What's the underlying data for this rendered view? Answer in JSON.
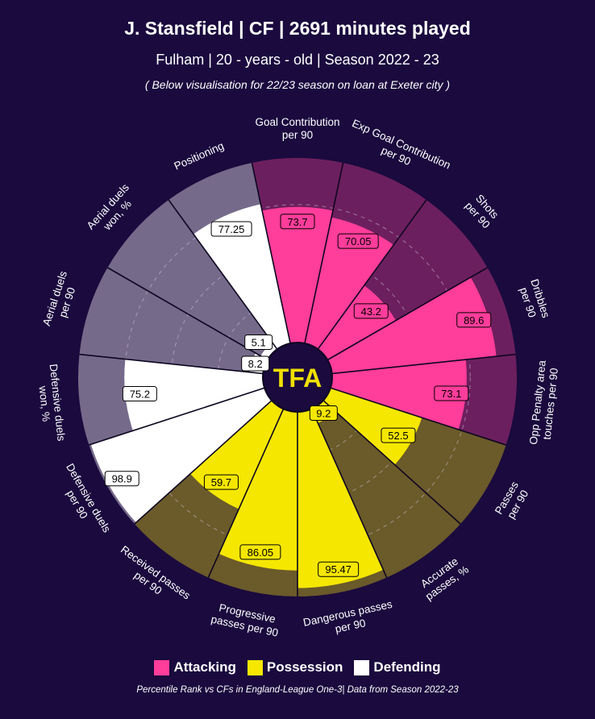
{
  "header": {
    "title": "J. Stansfield | CF | 2691 minutes played",
    "subtitle": "Fulham | 20 - years - old | Season 2022 - 23",
    "note": "( Below visualisation for 22/23 season on loan at Exeter city )"
  },
  "logo_text": "TFA",
  "colors": {
    "background": "#1a0a3e",
    "attacking": "#ff3d9a",
    "attacking_bg": "#6c1f5e",
    "possession": "#f5e700",
    "possession_bg": "#6b5a2a",
    "defending": "#ffffff",
    "defending_bg": "#766a8a",
    "logo_text": "#f0e000"
  },
  "legend": [
    {
      "label": "Attacking",
      "color": "#ff3d9a"
    },
    {
      "label": "Possession",
      "color": "#f5e700"
    },
    {
      "label": "Defending",
      "color": "#ffffff"
    }
  ],
  "footer": "Percentile Rank vs CFs in England-League One-3| Data from Season 2022-23",
  "chart_data": {
    "type": "pizza",
    "title": "J. Stansfield | CF | 2691 minutes played",
    "scale": [
      0,
      100
    ],
    "categories": [
      {
        "label": "Goal Contribution per 90",
        "lines": [
          "Goal Contribution",
          "per 90"
        ],
        "value": 73.7,
        "value_label": "73.7",
        "group": "Attacking"
      },
      {
        "label": "Exp Goal Contribution per 90",
        "lines": [
          "Exp Goal Contribution",
          "per 90"
        ],
        "value": 70.05,
        "value_label": "70.05",
        "group": "Attacking"
      },
      {
        "label": "Shots per 90",
        "lines": [
          "Shots",
          "per 90"
        ],
        "value": 43.2,
        "value_label": "43.2",
        "group": "Attacking"
      },
      {
        "label": "Dribbles per 90",
        "lines": [
          "Dribbles",
          "per 90"
        ],
        "value": 89.6,
        "value_label": "89.6",
        "group": "Attacking"
      },
      {
        "label": "Opp Penalty area touches per 90",
        "lines": [
          "Opp Penalty area",
          "touches per 90"
        ],
        "value": 73.1,
        "value_label": "73.1",
        "group": "Attacking"
      },
      {
        "label": "Passes per 90",
        "lines": [
          "Passes",
          "per 90"
        ],
        "value": 52.5,
        "value_label": "52.5",
        "group": "Possession"
      },
      {
        "label": "Accurate passes, %",
        "lines": [
          "Accurate",
          "passes, %"
        ],
        "value": 9.2,
        "value_label": "9.2",
        "group": "Possession"
      },
      {
        "label": "Dangerous passes per 90",
        "lines": [
          "Dangerous passes",
          "per 90"
        ],
        "value": 95.47,
        "value_label": "95.47",
        "group": "Possession"
      },
      {
        "label": "Progressive passes per 90",
        "lines": [
          "Progressive",
          "passes per 90"
        ],
        "value": 86.05,
        "value_label": "86.05",
        "group": "Possession"
      },
      {
        "label": "Received passes per 90",
        "lines": [
          "Received passes",
          "per 90"
        ],
        "value": 59.7,
        "value_label": "59.7",
        "group": "Possession"
      },
      {
        "label": "Defensive duels per 90",
        "lines": [
          "Defensive duels",
          "per 90"
        ],
        "value": 98.9,
        "value_label": "98.9",
        "group": "Defending"
      },
      {
        "label": "Defensive duels won, %",
        "lines": [
          "Defensive duels",
          "won, %"
        ],
        "value": 75.2,
        "value_label": "75.2",
        "group": "Defending"
      },
      {
        "label": "Aerial duels per 90",
        "lines": [
          "Aerial duels",
          "per 90"
        ],
        "value": 8.2,
        "value_label": "8.2",
        "group": "Defending"
      },
      {
        "label": "Aerial duels won, %",
        "lines": [
          "Aerial duels",
          "won, %"
        ],
        "value": 5.1,
        "value_label": "5.1",
        "group": "Defending"
      },
      {
        "label": "Positioning",
        "lines": [
          "Positioning"
        ],
        "value": 77.25,
        "value_label": "77.25",
        "group": "Defending"
      }
    ]
  }
}
